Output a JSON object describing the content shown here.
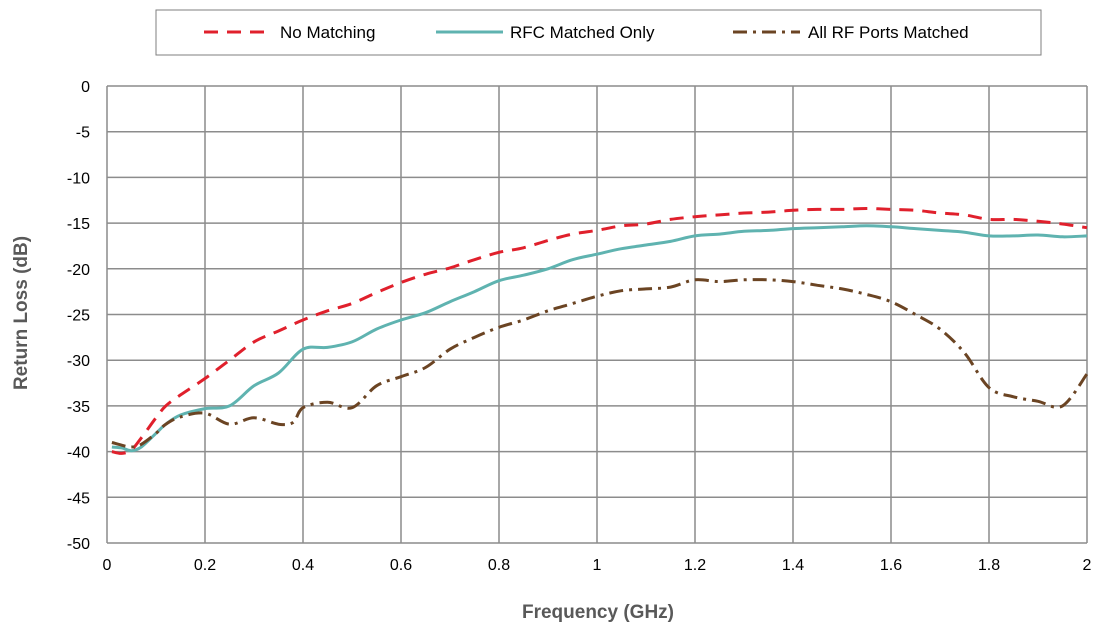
{
  "chart_data": {
    "type": "line",
    "title": "",
    "xlabel": "Frequency (GHz)",
    "ylabel": "Return Loss (dB)",
    "xlim": [
      0,
      2
    ],
    "ylim": [
      -50,
      0
    ],
    "xticks": [
      0,
      0.2,
      0.4,
      0.6,
      0.8,
      1,
      1.2,
      1.4,
      1.6,
      1.8,
      2
    ],
    "xtick_labels": [
      "0",
      "0.2",
      "0.4",
      "0.6",
      "0.8",
      "1",
      "1.2",
      "1.4",
      "1.6",
      "1.8",
      "2"
    ],
    "yticks": [
      0,
      -5,
      -10,
      -15,
      -20,
      -25,
      -30,
      -35,
      -40,
      -45,
      -50
    ],
    "ytick_labels": [
      "0",
      "-5",
      "-10",
      "-15",
      "-20",
      "-25",
      "-30",
      "-35",
      "-40",
      "-45",
      "-50"
    ],
    "grid": true,
    "legend_position": "top",
    "series": [
      {
        "name": "No Matching",
        "color": "#e0202c",
        "dash": "dashed",
        "x": [
          0.01,
          0.03,
          0.05,
          0.07,
          0.1,
          0.12,
          0.15,
          0.2,
          0.25,
          0.3,
          0.35,
          0.4,
          0.45,
          0.5,
          0.55,
          0.6,
          0.65,
          0.7,
          0.75,
          0.8,
          0.85,
          0.9,
          0.95,
          1.0,
          1.05,
          1.1,
          1.15,
          1.2,
          1.25,
          1.3,
          1.35,
          1.4,
          1.45,
          1.5,
          1.55,
          1.6,
          1.65,
          1.7,
          1.75,
          1.8,
          1.85,
          1.9,
          1.95,
          2.0
        ],
        "y": [
          -40,
          -40.2,
          -39.8,
          -38.5,
          -36.3,
          -35,
          -33.8,
          -32,
          -30,
          -28,
          -26.8,
          -25.6,
          -24.6,
          -23.8,
          -22.6,
          -21.5,
          -20.6,
          -19.9,
          -19,
          -18.2,
          -17.7,
          -16.9,
          -16.2,
          -15.8,
          -15.3,
          -15.1,
          -14.6,
          -14.3,
          -14.1,
          -13.9,
          -13.8,
          -13.6,
          -13.5,
          -13.5,
          -13.4,
          -13.5,
          -13.6,
          -13.9,
          -14.1,
          -14.6,
          -14.6,
          -14.8,
          -15.1,
          -15.5
        ]
      },
      {
        "name": "RFC Matched Only",
        "color": "#5fb3b0",
        "dash": "solid",
        "x": [
          0.01,
          0.03,
          0.05,
          0.07,
          0.1,
          0.12,
          0.15,
          0.2,
          0.25,
          0.3,
          0.35,
          0.4,
          0.45,
          0.5,
          0.55,
          0.6,
          0.65,
          0.7,
          0.75,
          0.8,
          0.85,
          0.9,
          0.95,
          1.0,
          1.05,
          1.1,
          1.15,
          1.2,
          1.25,
          1.3,
          1.35,
          1.4,
          1.45,
          1.5,
          1.55,
          1.6,
          1.65,
          1.7,
          1.75,
          1.8,
          1.85,
          1.9,
          1.95,
          2.0
        ],
        "y": [
          -39.5,
          -39.6,
          -39.9,
          -39.5,
          -38,
          -37,
          -36,
          -35.3,
          -35,
          -32.8,
          -31.4,
          -28.8,
          -28.6,
          -28,
          -26.6,
          -25.6,
          -24.8,
          -23.6,
          -22.5,
          -21.3,
          -20.7,
          -20,
          -19,
          -18.4,
          -17.8,
          -17.4,
          -17,
          -16.4,
          -16.2,
          -15.9,
          -15.8,
          -15.6,
          -15.5,
          -15.4,
          -15.3,
          -15.4,
          -15.6,
          -15.8,
          -16,
          -16.4,
          -16.4,
          -16.3,
          -16.5,
          -16.4
        ]
      },
      {
        "name": "All RF Ports Matched",
        "color": "#6b4423",
        "dash": "dash-dot",
        "x": [
          0.01,
          0.03,
          0.05,
          0.07,
          0.1,
          0.12,
          0.15,
          0.2,
          0.25,
          0.3,
          0.35,
          0.38,
          0.4,
          0.45,
          0.5,
          0.55,
          0.6,
          0.65,
          0.7,
          0.75,
          0.8,
          0.85,
          0.9,
          0.95,
          1.0,
          1.05,
          1.1,
          1.15,
          1.2,
          1.25,
          1.3,
          1.35,
          1.4,
          1.45,
          1.5,
          1.55,
          1.6,
          1.65,
          1.7,
          1.75,
          1.8,
          1.85,
          1.9,
          1.95,
          2.0
        ],
        "y": [
          -39,
          -39.3,
          -39.5,
          -39.2,
          -38,
          -37,
          -36.2,
          -35.8,
          -37,
          -36.3,
          -37,
          -36.8,
          -35.2,
          -34.6,
          -35.2,
          -32.8,
          -31.8,
          -30.8,
          -28.8,
          -27.5,
          -26.4,
          -25.6,
          -24.6,
          -23.8,
          -23,
          -22.4,
          -22.2,
          -22,
          -21.2,
          -21.4,
          -21.2,
          -21.2,
          -21.4,
          -21.8,
          -22.2,
          -22.8,
          -23.6,
          -25,
          -26.6,
          -29.2,
          -33,
          -34,
          -34.5,
          -35,
          -31.5
        ]
      }
    ]
  }
}
